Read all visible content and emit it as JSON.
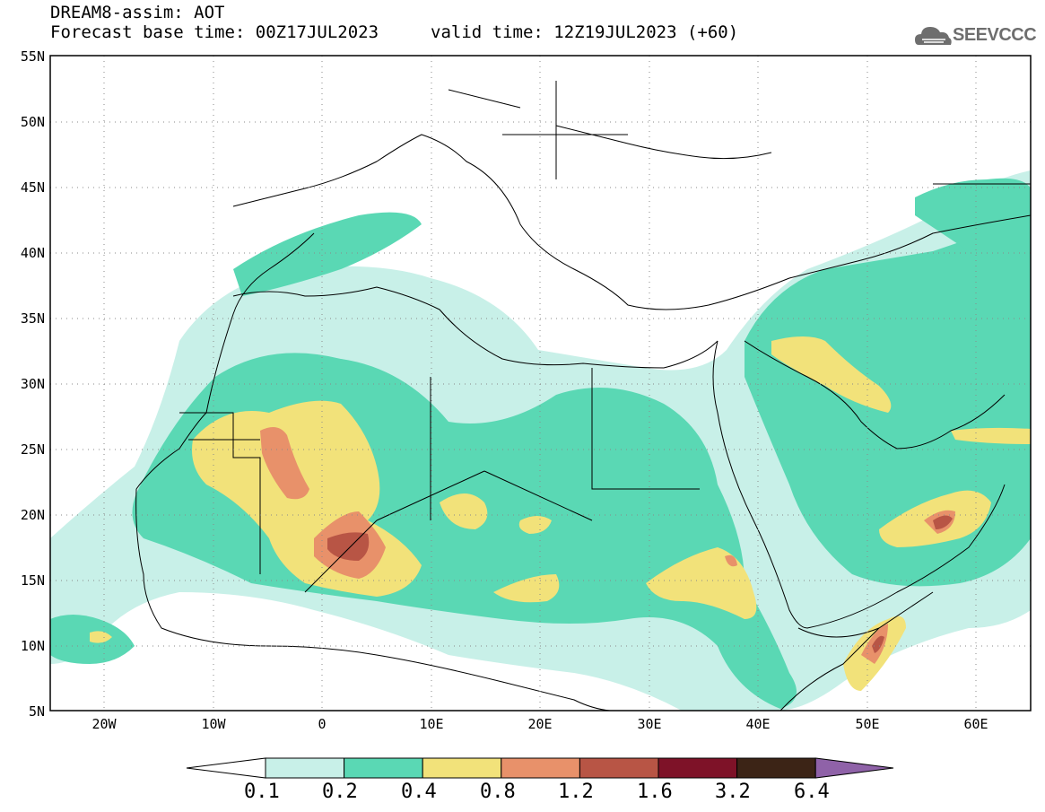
{
  "header": {
    "title": "DREAM8-assim: AOT",
    "forecast_base": "Forecast base time: 00Z17JUL2023",
    "valid_time": "valid time: 12Z19JUL2023 (+60)"
  },
  "logo": {
    "text": "SEEVCCC",
    "icon": "cloud-logo-icon"
  },
  "map": {
    "lat_labels": [
      "55N",
      "50N",
      "45N",
      "40N",
      "35N",
      "30N",
      "25N",
      "20N",
      "15N",
      "10N",
      "5N"
    ],
    "lon_labels": [
      "20W",
      "10W",
      "0",
      "10E",
      "20E",
      "30E",
      "40E",
      "50E",
      "60E"
    ],
    "lat_range": [
      5,
      55
    ],
    "lon_range": [
      -25,
      65
    ],
    "grid": "dotted",
    "variable": "AOT"
  },
  "legend": {
    "levels": [
      "0.1",
      "0.2",
      "0.4",
      "0.8",
      "1.2",
      "1.6",
      "3.2",
      "6.4"
    ],
    "colors": [
      "#c8f0e8",
      "#5ad8b4",
      "#f2e27a",
      "#e8916a",
      "#b85545",
      "#7e1228",
      "#3c2416",
      "#8f62a8"
    ]
  }
}
